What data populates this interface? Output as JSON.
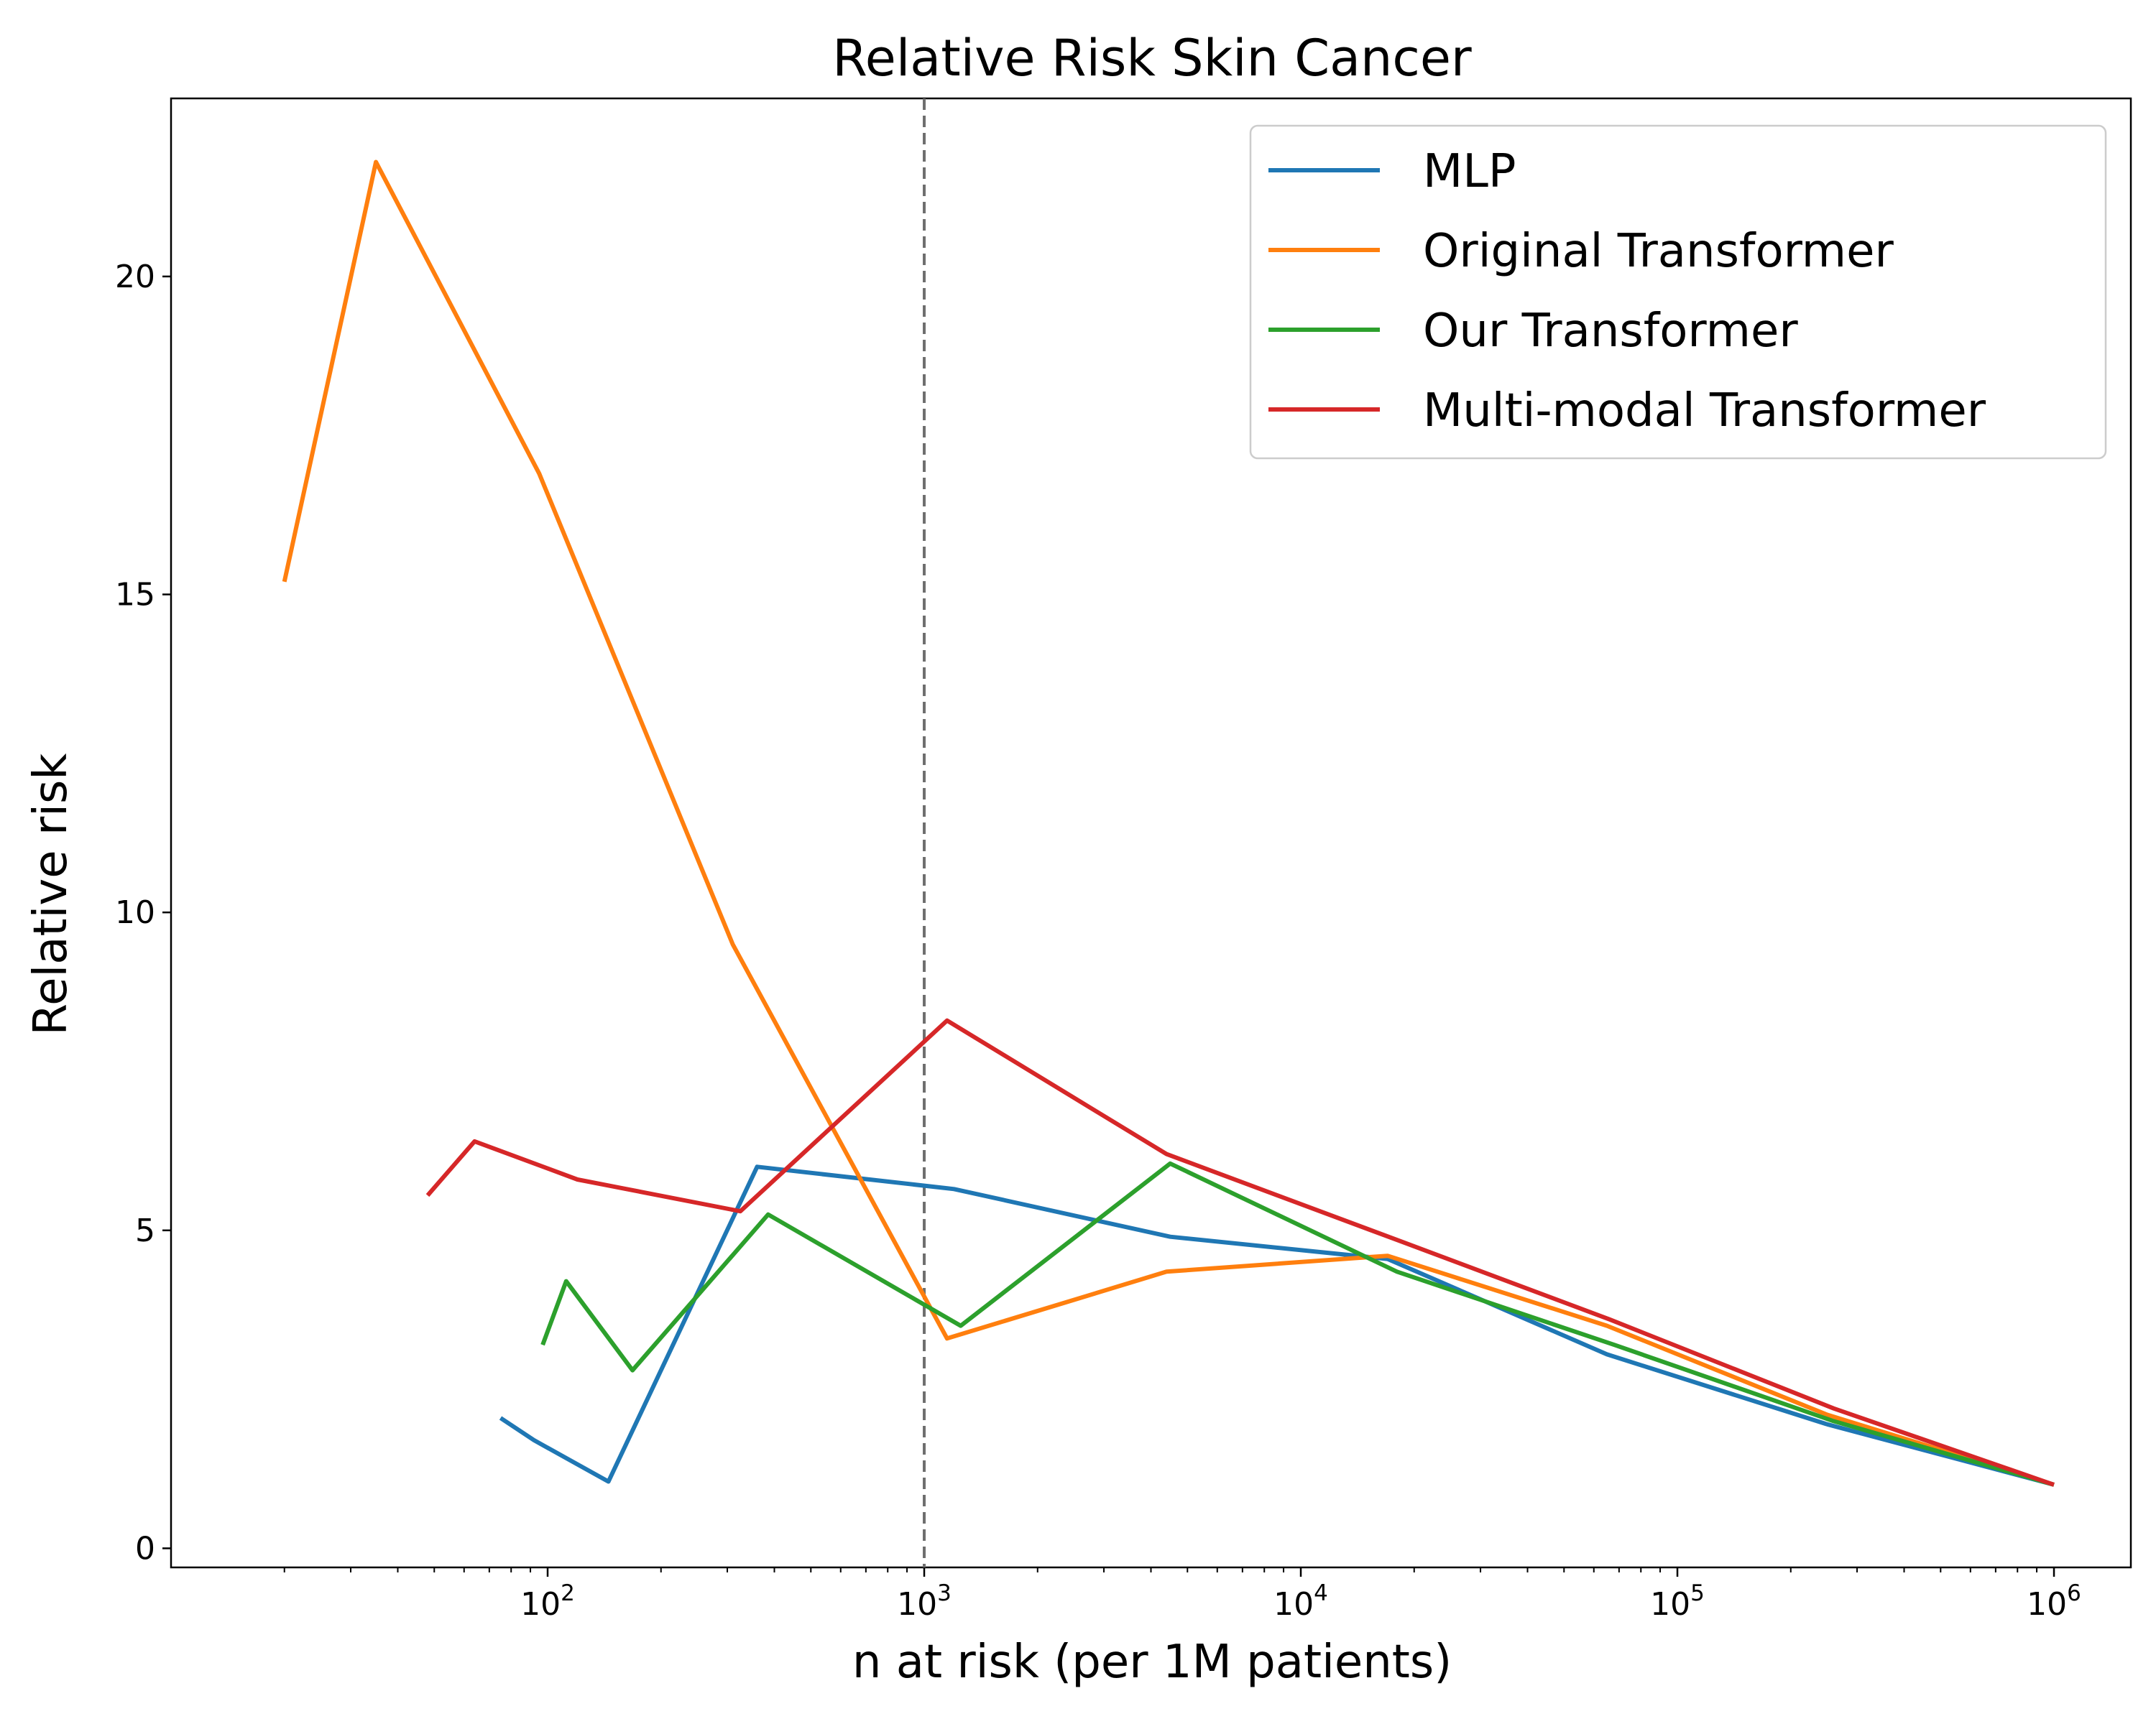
{
  "chart_data": {
    "type": "line",
    "title": "Relative Risk Skin Cancer",
    "xlabel": "n at risk (per 1M patients)",
    "ylabel": "Relative risk",
    "xscale": "log",
    "xlim": [
      10,
      1600000
    ],
    "ylim": [
      -0.3,
      22.8
    ],
    "x_ticks": [
      {
        "base": "10",
        "exp": "2",
        "value": 100
      },
      {
        "base": "10",
        "exp": "3",
        "value": 1000
      },
      {
        "base": "10",
        "exp": "4",
        "value": 10000
      },
      {
        "base": "10",
        "exp": "5",
        "value": 100000
      },
      {
        "base": "10",
        "exp": "6",
        "value": 1000000
      }
    ],
    "y_ticks": [
      "0",
      "5",
      "10",
      "15",
      "20"
    ],
    "reference_line": {
      "x": 1000,
      "style": "dashed",
      "color": "#6e6e6e"
    },
    "grid": false,
    "legend_position": "top-right",
    "series": [
      {
        "name": "MLP",
        "color": "#1f77b4",
        "x": [
          75,
          92,
          145,
          360,
          1200,
          4500,
          17000,
          65000,
          250000,
          1000000
        ],
        "y": [
          2.05,
          1.7,
          1.05,
          6.0,
          5.65,
          4.9,
          4.55,
          3.05,
          1.95,
          1.0
        ]
      },
      {
        "name": "Original Transformer",
        "color": "#ff7f0e",
        "x": [
          20,
          35,
          95,
          310,
          1150,
          4400,
          17000,
          65000,
          250000,
          1000000
        ],
        "y": [
          15.2,
          21.8,
          16.9,
          9.5,
          3.3,
          4.35,
          4.6,
          3.5,
          2.1,
          1.0
        ]
      },
      {
        "name": "Our Transformer",
        "color": "#2ca02c",
        "x": [
          97,
          112,
          168,
          385,
          1250,
          4500,
          18000,
          68000,
          260000,
          1000000
        ],
        "y": [
          3.2,
          4.2,
          2.8,
          5.25,
          3.5,
          6.05,
          4.35,
          3.2,
          2.0,
          1.0
        ]
      },
      {
        "name": "Multi-modal Transformer",
        "color": "#d62728",
        "x": [
          48,
          64,
          120,
          325,
          1150,
          4400,
          18000,
          66000,
          260000,
          1000000
        ],
        "y": [
          5.55,
          6.4,
          5.8,
          5.3,
          8.3,
          6.2,
          4.85,
          3.6,
          2.2,
          1.0
        ]
      }
    ]
  }
}
